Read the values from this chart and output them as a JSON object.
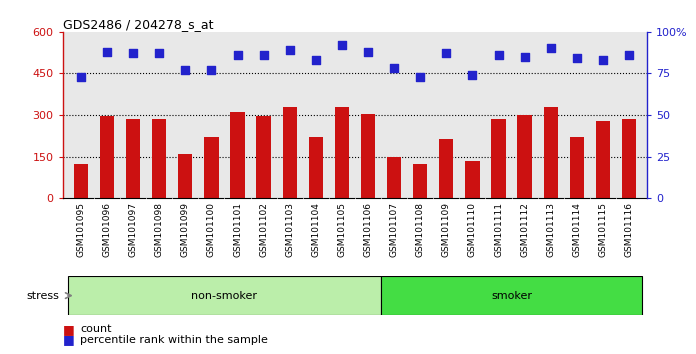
{
  "title": "GDS2486 / 204278_s_at",
  "categories": [
    "GSM101095",
    "GSM101096",
    "GSM101097",
    "GSM101098",
    "GSM101099",
    "GSM101100",
    "GSM101101",
    "GSM101102",
    "GSM101103",
    "GSM101104",
    "GSM101105",
    "GSM101106",
    "GSM101107",
    "GSM101108",
    "GSM101109",
    "GSM101110",
    "GSM101111",
    "GSM101112",
    "GSM101113",
    "GSM101114",
    "GSM101115",
    "GSM101116"
  ],
  "counts": [
    125,
    297,
    287,
    287,
    160,
    220,
    310,
    295,
    330,
    220,
    330,
    305,
    150,
    125,
    215,
    135,
    285,
    300,
    330,
    220,
    280,
    285
  ],
  "percentile": [
    73,
    88,
    87,
    87,
    77,
    77,
    86,
    86,
    89,
    83,
    92,
    88,
    78,
    73,
    87,
    74,
    86,
    85,
    90,
    84,
    83,
    86
  ],
  "bar_color": "#cc1111",
  "dot_color": "#2222cc",
  "left_ylim": [
    0,
    600
  ],
  "right_ylim": [
    0,
    100
  ],
  "left_yticks": [
    0,
    150,
    300,
    450,
    600
  ],
  "right_yticks": [
    0,
    25,
    50,
    75,
    100
  ],
  "left_ytick_labels": [
    "0",
    "150",
    "300",
    "450",
    "600"
  ],
  "right_ytick_labels": [
    "0",
    "25",
    "50",
    "75",
    "100%"
  ],
  "grid_values": [
    150,
    300,
    450
  ],
  "non_smoker_range": [
    0,
    11
  ],
  "smoker_range": [
    12,
    21
  ],
  "non_smoker_color": "#bbeeaa",
  "smoker_color": "#44dd44",
  "xtick_bg_color": "#cccccc",
  "stress_label": "stress",
  "non_smoker_label": "non-smoker",
  "smoker_label": "smoker",
  "legend_count_label": "count",
  "legend_pct_label": "percentile rank within the sample",
  "plot_bg_color": "#e8e8e8",
  "figsize": [
    6.96,
    3.54
  ],
  "dpi": 100
}
